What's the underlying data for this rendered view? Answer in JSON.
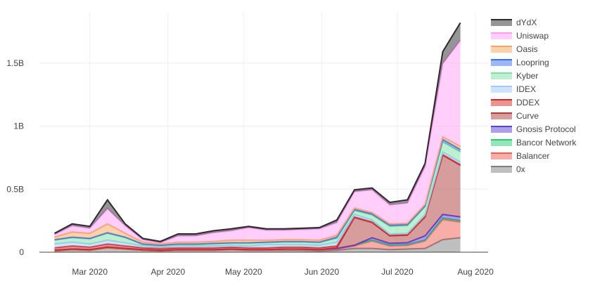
{
  "chart_data": {
    "type": "area",
    "title": "",
    "xlabel": "",
    "ylabel": "",
    "stacked": true,
    "grid": true,
    "legend_position": "right",
    "x": [
      "2020-02-16",
      "2020-02-23",
      "2020-03-01",
      "2020-03-08",
      "2020-03-15",
      "2020-03-22",
      "2020-03-29",
      "2020-04-05",
      "2020-04-12",
      "2020-04-19",
      "2020-04-26",
      "2020-05-03",
      "2020-05-10",
      "2020-05-17",
      "2020-05-24",
      "2020-05-31",
      "2020-06-07",
      "2020-06-14",
      "2020-06-21",
      "2020-06-28",
      "2020-07-05",
      "2020-07-12",
      "2020-07-19",
      "2020-07-26"
    ],
    "x_range": [
      "2020-02-10",
      "2020-08-06"
    ],
    "y_range": [
      0,
      1900000000
    ],
    "x_ticks": [
      {
        "date": "2020-03-01",
        "label": "Mar 2020"
      },
      {
        "date": "2020-04-01",
        "label": "Apr 2020"
      },
      {
        "date": "2020-05-01",
        "label": "May 2020"
      },
      {
        "date": "2020-06-01",
        "label": "Jun 2020"
      },
      {
        "date": "2020-07-01",
        "label": "Jul 2020"
      },
      {
        "date": "2020-08-01",
        "label": "Aug 2020"
      }
    ],
    "y_ticks": [
      {
        "value": 0,
        "label": "0"
      },
      {
        "value": 500000000,
        "label": "0.5B"
      },
      {
        "value": 1000000000,
        "label": "1B"
      },
      {
        "value": 1500000000,
        "label": "1.5B"
      }
    ],
    "series": [
      {
        "name": "0x",
        "color": "#7f7f7f",
        "values": [
          10000000,
          20000000,
          15000000,
          35000000,
          25000000,
          15000000,
          10000000,
          15000000,
          15000000,
          15000000,
          20000000,
          15000000,
          15000000,
          15000000,
          15000000,
          10000000,
          15000000,
          30000000,
          30000000,
          20000000,
          25000000,
          30000000,
          100000000,
          115000000
        ]
      },
      {
        "name": "Balancer",
        "color": "#f25c54",
        "values": [
          0,
          0,
          0,
          0,
          0,
          0,
          0,
          0,
          0,
          0,
          0,
          0,
          0,
          5000000,
          5000000,
          5000000,
          10000000,
          20000000,
          60000000,
          30000000,
          30000000,
          60000000,
          160000000,
          125000000
        ]
      },
      {
        "name": "Bancor Network",
        "color": "#2ecc71",
        "values": [
          5000000,
          5000000,
          5000000,
          5000000,
          5000000,
          5000000,
          5000000,
          5000000,
          5000000,
          5000000,
          5000000,
          5000000,
          5000000,
          5000000,
          5000000,
          5000000,
          5000000,
          5000000,
          5000000,
          5000000,
          5000000,
          5000000,
          10000000,
          10000000
        ]
      },
      {
        "name": "Gnosis Protocol",
        "color": "#5b3fd9",
        "values": [
          0,
          0,
          0,
          0,
          0,
          0,
          0,
          0,
          0,
          0,
          0,
          0,
          0,
          0,
          0,
          0,
          0,
          0,
          20000000,
          15000000,
          15000000,
          35000000,
          30000000,
          30000000
        ]
      },
      {
        "name": "Curve",
        "color": "#b03a3a",
        "values": [
          0,
          0,
          0,
          0,
          0,
          0,
          0,
          0,
          0,
          0,
          0,
          0,
          0,
          0,
          0,
          0,
          5000000,
          220000000,
          120000000,
          60000000,
          60000000,
          150000000,
          470000000,
          410000000
        ]
      },
      {
        "name": "DDEX",
        "color": "#d62728",
        "values": [
          20000000,
          25000000,
          20000000,
          25000000,
          20000000,
          15000000,
          15000000,
          15000000,
          15000000,
          15000000,
          15000000,
          15000000,
          15000000,
          15000000,
          15000000,
          15000000,
          15000000,
          5000000,
          5000000,
          5000000,
          5000000,
          5000000,
          5000000,
          5000000
        ]
      },
      {
        "name": "IDEX",
        "color": "#9ec9f7",
        "values": [
          30000000,
          30000000,
          25000000,
          30000000,
          25000000,
          15000000,
          10000000,
          15000000,
          15000000,
          15000000,
          15000000,
          15000000,
          25000000,
          20000000,
          20000000,
          20000000,
          30000000,
          20000000,
          15000000,
          10000000,
          10000000,
          15000000,
          20000000,
          20000000
        ]
      },
      {
        "name": "Kyber",
        "color": "#7ee0a3",
        "values": [
          30000000,
          35000000,
          40000000,
          55000000,
          40000000,
          10000000,
          10000000,
          10000000,
          10000000,
          15000000,
          15000000,
          20000000,
          15000000,
          20000000,
          20000000,
          20000000,
          30000000,
          30000000,
          40000000,
          60000000,
          60000000,
          60000000,
          80000000,
          80000000
        ]
      },
      {
        "name": "Loopring",
        "color": "#3b6fe8",
        "values": [
          5000000,
          5000000,
          5000000,
          5000000,
          5000000,
          5000000,
          5000000,
          5000000,
          5000000,
          5000000,
          5000000,
          5000000,
          5000000,
          5000000,
          5000000,
          5000000,
          10000000,
          10000000,
          10000000,
          10000000,
          10000000,
          10000000,
          20000000,
          20000000
        ]
      },
      {
        "name": "Oasis",
        "color": "#f7a45e",
        "values": [
          20000000,
          40000000,
          40000000,
          70000000,
          30000000,
          15000000,
          10000000,
          15000000,
          15000000,
          15000000,
          20000000,
          20000000,
          15000000,
          15000000,
          15000000,
          15000000,
          15000000,
          10000000,
          10000000,
          10000000,
          10000000,
          10000000,
          20000000,
          25000000
        ]
      },
      {
        "name": "Uniswap",
        "color": "#ff9df3",
        "values": [
          20000000,
          50000000,
          40000000,
          120000000,
          60000000,
          20000000,
          10000000,
          50000000,
          50000000,
          70000000,
          75000000,
          100000000,
          80000000,
          75000000,
          80000000,
          90000000,
          100000000,
          130000000,
          180000000,
          150000000,
          160000000,
          300000000,
          580000000,
          840000000
        ]
      },
      {
        "name": "dYdX",
        "color": "#2b2b2b",
        "values": [
          10000000,
          15000000,
          15000000,
          70000000,
          15000000,
          10000000,
          10000000,
          15000000,
          15000000,
          15000000,
          15000000,
          10000000,
          10000000,
          10000000,
          10000000,
          10000000,
          20000000,
          15000000,
          15000000,
          20000000,
          25000000,
          25000000,
          95000000,
          140000000
        ]
      }
    ]
  }
}
